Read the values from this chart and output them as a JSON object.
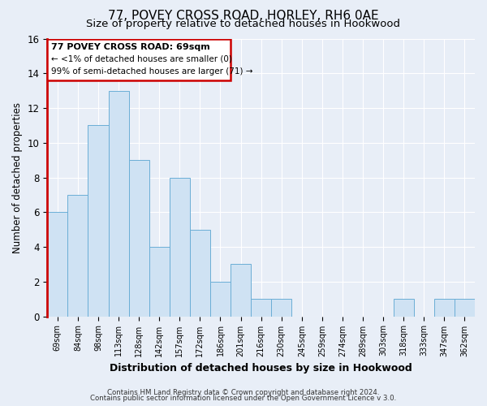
{
  "title": "77, POVEY CROSS ROAD, HORLEY, RH6 0AE",
  "subtitle": "Size of property relative to detached houses in Hookwood",
  "xlabel": "Distribution of detached houses by size in Hookwood",
  "ylabel": "Number of detached properties",
  "bar_labels": [
    "69sqm",
    "84sqm",
    "98sqm",
    "113sqm",
    "128sqm",
    "142sqm",
    "157sqm",
    "172sqm",
    "186sqm",
    "201sqm",
    "216sqm",
    "230sqm",
    "245sqm",
    "259sqm",
    "274sqm",
    "289sqm",
    "303sqm",
    "318sqm",
    "333sqm",
    "347sqm",
    "362sqm"
  ],
  "bar_values": [
    6,
    7,
    11,
    13,
    9,
    4,
    8,
    5,
    2,
    3,
    1,
    1,
    0,
    0,
    0,
    0,
    0,
    1,
    0,
    1,
    1
  ],
  "ylim": [
    0,
    16
  ],
  "yticks": [
    0,
    2,
    4,
    6,
    8,
    10,
    12,
    14,
    16
  ],
  "bar_color": "#cfe2f3",
  "bar_edge_color": "#6baed6",
  "annotation_box_color": "#ffffff",
  "annotation_box_edge": "#cc0000",
  "annotation_line1": "77 POVEY CROSS ROAD: 69sqm",
  "annotation_line2": "← <1% of detached houses are smaller (0)",
  "annotation_line3": "99% of semi-detached houses are larger (71) →",
  "highlight_bar_color": "#cc0000",
  "background_color": "#e8eef7",
  "plot_bg_color": "#e8eef7",
  "footer1": "Contains HM Land Registry data © Crown copyright and database right 2024.",
  "footer2": "Contains public sector information licensed under the Open Government Licence v 3.0.",
  "grid_color": "#ffffff",
  "title_fontsize": 11,
  "subtitle_fontsize": 9.5,
  "xlabel_fontsize": 9,
  "ylabel_fontsize": 8.5
}
